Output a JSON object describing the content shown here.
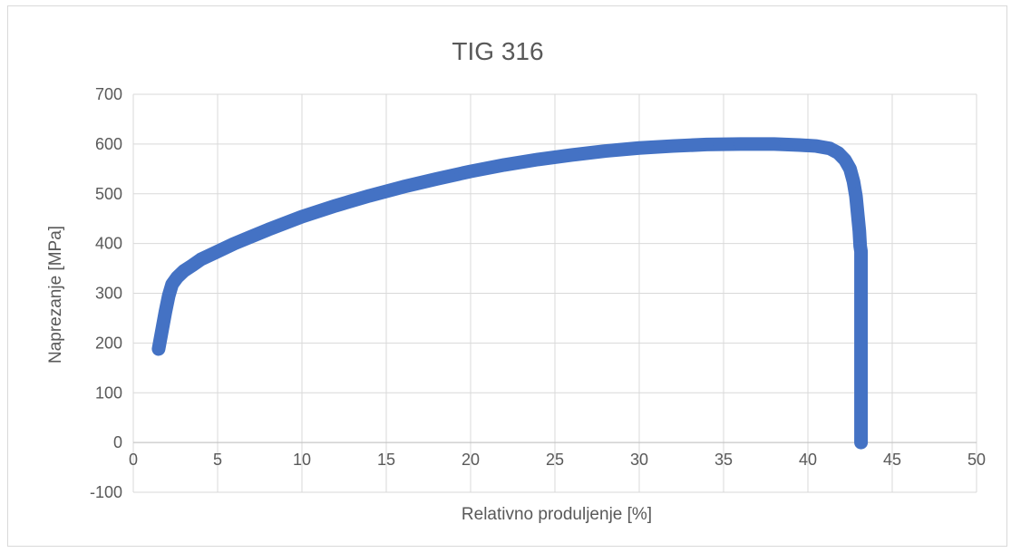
{
  "chart_data": {
    "type": "scatter",
    "title": "TIG 316",
    "xlabel": "Relativno produljenje [%]",
    "ylabel": "Naprezanje [MPa]",
    "xlim": [
      0,
      50
    ],
    "ylim": [
      -100,
      700
    ],
    "x_ticks": [
      0,
      5,
      10,
      15,
      20,
      25,
      30,
      35,
      40,
      45,
      50
    ],
    "y_ticks": [
      -100,
      0,
      100,
      200,
      300,
      400,
      500,
      600,
      700
    ],
    "grid": true,
    "legend": "none",
    "series_color": "#4472c4",
    "series": [
      {
        "points": [
          [
            1.5,
            188
          ],
          [
            1.7,
            225
          ],
          [
            1.9,
            262
          ],
          [
            2.1,
            295
          ],
          [
            2.3,
            318
          ],
          [
            2.6,
            332
          ],
          [
            3.0,
            345
          ],
          [
            3.5,
            356
          ],
          [
            4,
            368
          ],
          [
            5,
            384
          ],
          [
            6,
            400
          ],
          [
            7,
            414
          ],
          [
            8,
            428
          ],
          [
            9,
            441
          ],
          [
            10,
            454
          ],
          [
            12,
            476
          ],
          [
            14,
            496
          ],
          [
            16,
            514
          ],
          [
            18,
            530
          ],
          [
            20,
            545
          ],
          [
            22,
            558
          ],
          [
            24,
            569
          ],
          [
            26,
            578
          ],
          [
            28,
            586
          ],
          [
            30,
            592
          ],
          [
            32,
            596
          ],
          [
            34,
            599
          ],
          [
            36,
            600
          ],
          [
            38,
            600
          ],
          [
            39.5,
            598
          ],
          [
            40.5,
            596
          ],
          [
            41.3,
            591
          ],
          [
            41.8,
            582
          ],
          [
            42.2,
            568
          ],
          [
            42.5,
            550
          ],
          [
            42.7,
            525
          ],
          [
            42.85,
            495
          ],
          [
            42.95,
            460
          ],
          [
            43.05,
            425
          ],
          [
            43.1,
            395
          ],
          [
            43.15,
            384
          ],
          [
            43.15,
            357
          ],
          [
            43.15,
            262
          ],
          [
            43.15,
            166
          ],
          [
            43.15,
            72
          ],
          [
            43.15,
            0
          ]
        ]
      }
    ]
  }
}
